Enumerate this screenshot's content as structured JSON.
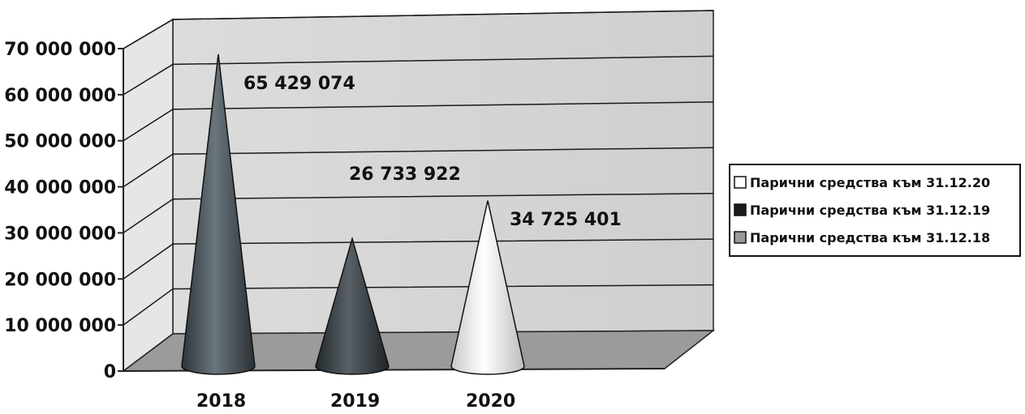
{
  "chart_data": {
    "type": "bar",
    "shape": "3d-cone",
    "title": "",
    "xlabel": "",
    "ylabel": "",
    "categories": [
      "2018",
      "2019",
      "2020"
    ],
    "ylim": [
      0,
      70000000
    ],
    "yticks": [
      0,
      10000000,
      20000000,
      30000000,
      40000000,
      50000000,
      60000000,
      70000000
    ],
    "ytick_labels": [
      "0",
      "10 000 000",
      "20 000 000",
      "30 000 000",
      "40 000 000",
      "50 000 000",
      "60 000 000",
      "70 000 000"
    ],
    "grid": true,
    "legend_position": "right",
    "series": [
      {
        "name": "Парични средства към 31.12.18",
        "category": "2018",
        "value": 65429074,
        "label": "65 429 074",
        "color": "#505a62"
      },
      {
        "name": "Парични средства към 31.12.19",
        "category": "2019",
        "value": 26733922,
        "label": "26 733 922",
        "color": "#3c4248"
      },
      {
        "name": "Парични средства към 31.12.20",
        "category": "2020",
        "value": 34725401,
        "label": "34 725 401",
        "color": "#f2f2f2"
      }
    ],
    "legend": [
      {
        "label": "Парични средства към 31.12.20",
        "color": "#ffffff"
      },
      {
        "label": "Парични средства към 31.12.19",
        "color": "#1a1a1a"
      },
      {
        "label": "Парични средства към 31.12.18",
        "color": "#9a9a9a"
      }
    ]
  }
}
